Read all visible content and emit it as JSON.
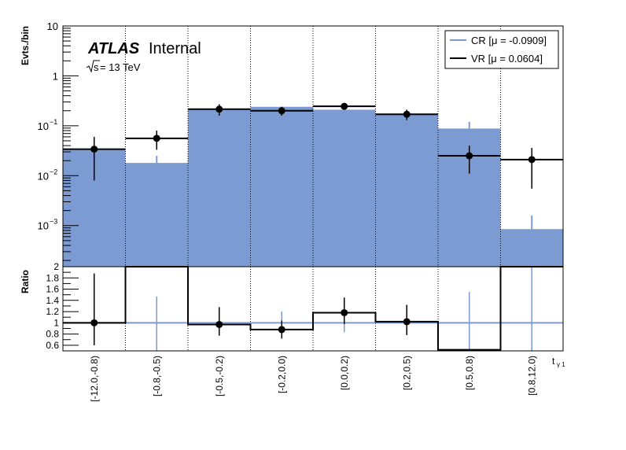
{
  "chart_data": [
    {
      "type": "bar",
      "panel": "main",
      "yscale": "log",
      "ylabel": "Evts./bin",
      "ylim": [
        0.00015,
        10
      ],
      "y_ticks": [
        {
          "value": 0.001,
          "label": "10",
          "exp": "−3"
        },
        {
          "value": 0.01,
          "label": "10",
          "exp": "−2"
        },
        {
          "value": 0.1,
          "label": "10",
          "exp": "−1"
        },
        {
          "value": 1,
          "label": "1",
          "exp": ""
        },
        {
          "value": 10,
          "label": "10",
          "exp": ""
        }
      ],
      "categories": [
        "[-12.0,-0.8)",
        "[-0.8,-0.5)",
        "[-0.5,-0.2)",
        "[-0.2,0.0)",
        "[0.0,0.2)",
        "[0.2,0.5)",
        "[0.5,0.8)",
        "[0.8,12.0)"
      ],
      "atlas": {
        "brand": "ATLAS",
        "status": "Internal",
        "energy_sqrt": "s",
        "energy_rest": " = 13 TeV"
      },
      "legend": {
        "placement": "top-right",
        "entries": [
          "CR [μ = -0.0909]",
          "VR [μ = 0.0604]"
        ]
      },
      "series": [
        {
          "name": "CR [μ = -0.0909]",
          "style": "filled-histogram",
          "color": "#7b9bd2",
          "values": [
            0.033,
            0.018,
            0.22,
            0.24,
            0.21,
            0.17,
            0.088,
            0.00085
          ],
          "err_low": [
            0,
            0,
            0,
            0,
            0,
            0,
            0,
            0
          ],
          "err_high": [
            0,
            0.025,
            0,
            0,
            0,
            0,
            0.12,
            0.0016
          ]
        },
        {
          "name": "VR [μ = 0.0604]",
          "style": "histogram-with-points",
          "color": "#000000",
          "values": [
            0.034,
            0.056,
            0.215,
            0.2,
            0.245,
            0.17,
            0.025,
            0.021
          ],
          "err_low": [
            0.008,
            0.033,
            0.16,
            0.16,
            0.21,
            0.13,
            0.011,
            0.0055
          ],
          "err_high": [
            0.06,
            0.08,
            0.27,
            0.24,
            0.28,
            0.21,
            0.04,
            0.036
          ]
        }
      ]
    },
    {
      "type": "line",
      "panel": "ratio",
      "ylabel": "Ratio",
      "xlabel": "t",
      "xlabel_sub": "γ 1",
      "ylim": [
        0.5,
        2.0
      ],
      "y_ticks": [
        "0.6",
        "0.8",
        "1",
        "1.2",
        "1.4",
        "1.6",
        "1.8",
        "2"
      ],
      "reference": 1.0,
      "reference_color": "#7b9bd2",
      "categories": [
        "[-12.0,-0.8)",
        "[-0.8,-0.5)",
        "[-0.5,-0.2)",
        "[-0.2,0.0)",
        "[0.0,0.2)",
        "[0.2,0.5)",
        "[0.5,0.8)",
        "[0.8,12.0)"
      ],
      "ratio_values": [
        1.0,
        2.0,
        0.97,
        0.88,
        1.18,
        1.02,
        0.52,
        2.0
      ],
      "ratio_points": [
        1.0,
        null,
        0.97,
        0.88,
        1.18,
        1.02,
        null,
        null
      ],
      "ratio_err_low": [
        0.6,
        null,
        0.77,
        0.72,
        0.98,
        0.78,
        null,
        null
      ],
      "ratio_err_high": [
        1.88,
        null,
        1.28,
        1.04,
        1.45,
        1.32,
        null,
        null
      ],
      "cr_err_low": [
        null,
        0.5,
        null,
        0.8,
        0.83,
        null,
        0.5,
        0.5
      ],
      "cr_err_high": [
        null,
        1.47,
        null,
        1.2,
        1.18,
        null,
        1.55,
        2.0
      ]
    }
  ]
}
